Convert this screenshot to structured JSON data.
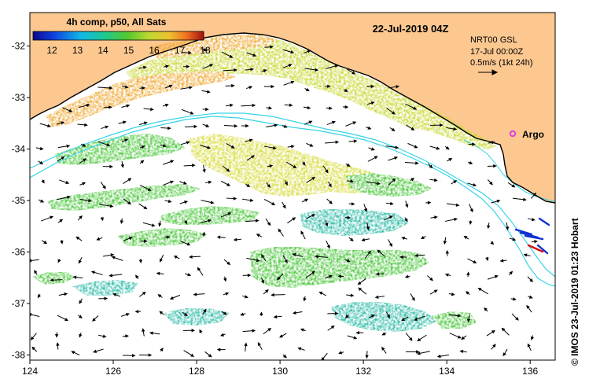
{
  "title_date": "22-Jul-2019 04Z",
  "legend": {
    "title": "4h comp, p50, All Sats",
    "ticks": [
      "12",
      "13",
      "14",
      "15",
      "16",
      "17",
      "18"
    ]
  },
  "current_info": {
    "line1": "NRT00 GSL",
    "line2": "17-Jul 00:00Z",
    "line3": "0.5m/s (1kt 24h)"
  },
  "argo_label": "Argo",
  "credit": "© IMOS 23-Jul-2019 01:23 Hobart",
  "axes": {
    "x_ticks": [
      "124",
      "126",
      "128",
      "130",
      "132",
      "134",
      "136"
    ],
    "y_ticks": [
      "-32",
      "-33",
      "-34",
      "-35",
      "-36",
      "-37",
      "-38"
    ],
    "x_range": [
      124,
      136.6
    ],
    "y_range": [
      -31.35,
      -38.1
    ]
  },
  "colors": {
    "land": "#fcc890",
    "coast_line": "#000000",
    "isobath": "#36d4e6",
    "argo": "#e040e0",
    "drifter_blue": "#1030d0",
    "drifter_red": "#d01010"
  },
  "sst_regions": [
    {
      "name": "shelf-warm-band",
      "color": "#c8d832"
    },
    {
      "name": "gulf-orange-band",
      "color": "#f0a832"
    },
    {
      "name": "central-yellow",
      "color": "#d8dc3c"
    },
    {
      "name": "green-streaks",
      "color": "#4cc83c"
    },
    {
      "name": "cyan-south",
      "color": "#30bca8"
    }
  ]
}
